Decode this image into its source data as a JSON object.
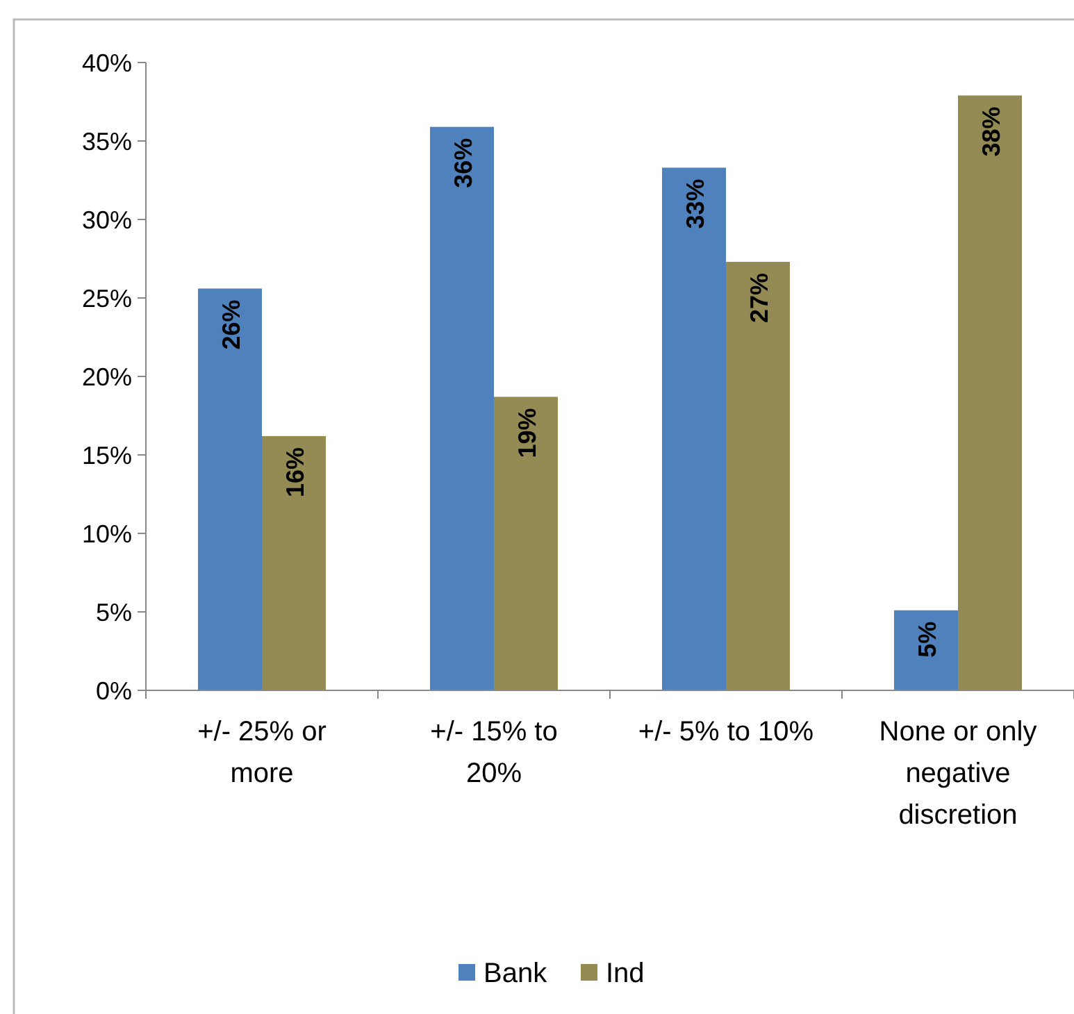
{
  "chart_data": {
    "type": "bar",
    "categories": [
      "+/- 25% or more",
      "+/- 15% to 20%",
      "+/- 5% to 10%",
      "None or only negative discretion"
    ],
    "series": [
      {
        "name": "Bank",
        "color": "#4f81bd",
        "values": [
          25.6,
          35.9,
          33.3,
          5.1
        ],
        "value_labels": [
          "26%",
          "36%",
          "33%",
          "5%"
        ]
      },
      {
        "name": "Ind",
        "color": "#948a54",
        "values": [
          16.2,
          18.7,
          27.3,
          37.9
        ],
        "value_labels": [
          "16%",
          "19%",
          "27%",
          "38%"
        ]
      }
    ],
    "ylim": [
      0,
      40
    ],
    "yticks": [
      {
        "value": 0,
        "label": "0%"
      },
      {
        "value": 5,
        "label": "5%"
      },
      {
        "value": 10,
        "label": "10%"
      },
      {
        "value": 15,
        "label": "15%"
      },
      {
        "value": 20,
        "label": "20%"
      },
      {
        "value": 25,
        "label": "25%"
      },
      {
        "value": 30,
        "label": "30%"
      },
      {
        "value": 35,
        "label": "35%"
      },
      {
        "value": 40,
        "label": "40%"
      }
    ],
    "grid": false,
    "legend": "bottom"
  }
}
